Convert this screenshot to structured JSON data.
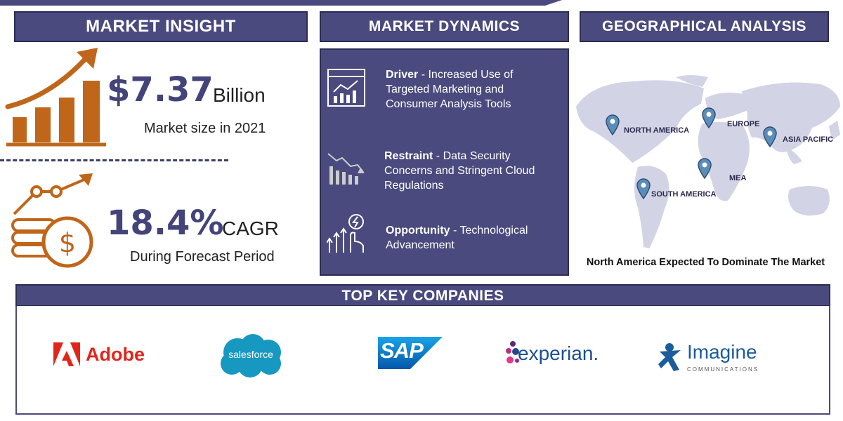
{
  "headers": {
    "market_insight": "MARKET INSIGHT",
    "market_dynamics": "MARKET DYNAMICS",
    "geographical_analysis": "GEOGRAPHICAL ANALYSIS",
    "top_key_companies": "TOP KEY COMPANIES"
  },
  "insight": {
    "market_size_value": "$7.37",
    "market_size_unit": "Billion",
    "market_size_caption": "Market size in 2021",
    "cagr_value": "18.4%",
    "cagr_unit": "CAGR",
    "cagr_caption": "During Forecast Period"
  },
  "dynamics": [
    {
      "title": "Driver",
      "separator": " - ",
      "text": "Increased Use of Targeted Marketing and Consumer Analysis Tools",
      "icon": "chart-analysis-icon"
    },
    {
      "title": "Restraint",
      "separator": " - ",
      "text": "Data Security Concerns and Stringent Cloud Regulations",
      "icon": "declining-bars-icon"
    },
    {
      "title": "Opportunity",
      "separator": " - ",
      "text": "Technological Advancement",
      "icon": "touch-growth-icon"
    }
  ],
  "geography": {
    "regions": [
      "NORTH AMERICA",
      "EUROPE",
      "ASIA PACIFIC",
      "MEA",
      "SOUTH AMERICA"
    ],
    "conclusion": "North America Expected To Dominate The Market"
  },
  "companies": [
    {
      "name": "Adobe",
      "color": "#e1251b"
    },
    {
      "name": "salesforce",
      "color": "#1798c1"
    },
    {
      "name": "SAP",
      "color": "#0a6ed1"
    },
    {
      "name": "experian.",
      "color": "#1d4f91"
    },
    {
      "name": "Imagine",
      "sub": "COMMUNICATIONS",
      "color": "#1b5c9c"
    }
  ],
  "colors": {
    "primary": "#4a4a7e",
    "accent": "#c0661a"
  }
}
